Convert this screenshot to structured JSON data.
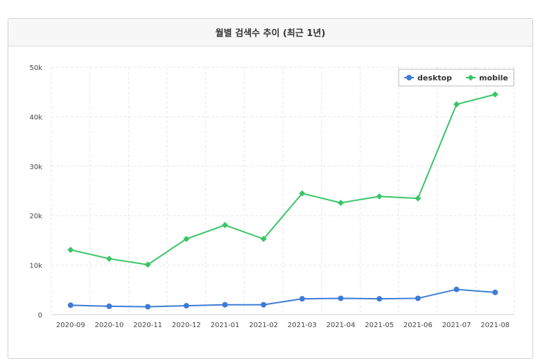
{
  "panel": {
    "title": "월별 검색수 추이 (최근 1년)"
  },
  "chart_data": {
    "type": "line",
    "title": "월별 검색수 추이 (최근 1년)",
    "xlabel": "",
    "ylabel": "",
    "categories": [
      "2020-09",
      "2020-10",
      "2020-11",
      "2020-12",
      "2021-01",
      "2021-02",
      "2021-03",
      "2021-04",
      "2021-05",
      "2021-06",
      "2021-07",
      "2021-08"
    ],
    "ylim": [
      0,
      50000
    ],
    "yticks": [
      0,
      10000,
      20000,
      30000,
      40000,
      50000
    ],
    "ytick_labels": [
      "0",
      "10k",
      "20k",
      "30k",
      "40k",
      "50k"
    ],
    "grid": true,
    "legend_position": "top-right",
    "series": [
      {
        "name": "desktop",
        "color": "#3c7bd6",
        "marker": "circle",
        "values": [
          1900,
          1700,
          1600,
          1800,
          2000,
          2000,
          3200,
          3300,
          3200,
          3300,
          5100,
          4500
        ]
      },
      {
        "name": "mobile",
        "color": "#37c564",
        "marker": "diamond",
        "values": [
          13100,
          11300,
          10100,
          15300,
          18100,
          15300,
          24500,
          22600,
          23900,
          23500,
          42500,
          44500
        ]
      }
    ]
  }
}
